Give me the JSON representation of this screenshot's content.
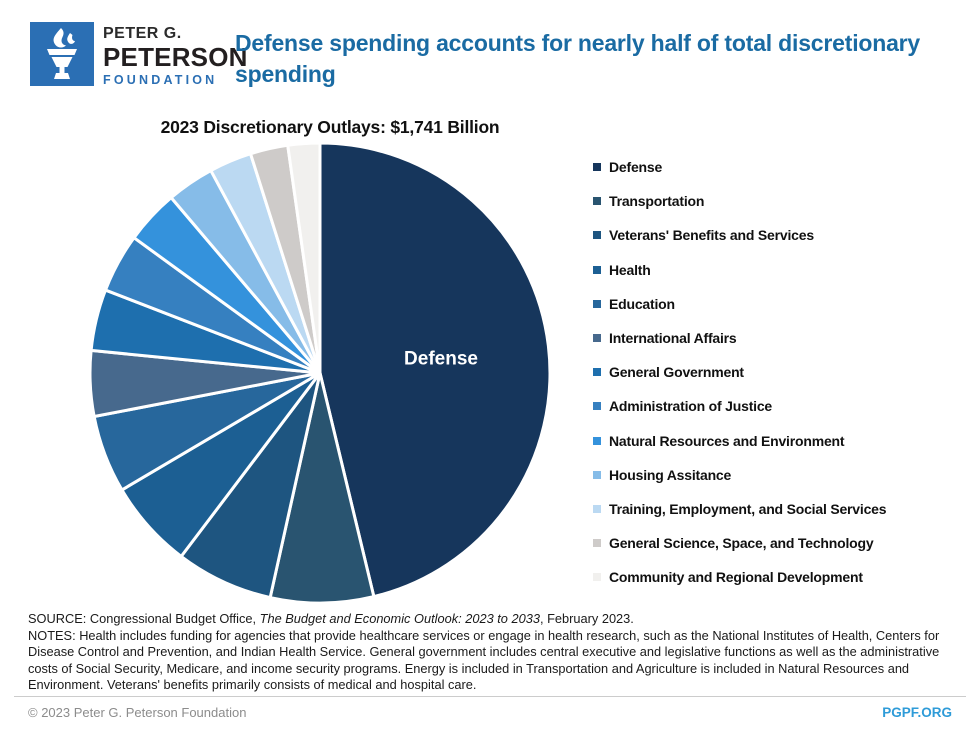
{
  "header": {
    "logo": {
      "line1": "PETER G.",
      "line2": "PETERSON",
      "line3": "FOUNDATION",
      "square_color": "#2b6fb4",
      "icon": "torch-icon"
    },
    "title": "Defense spending accounts for nearly half of total discretionary spending",
    "title_color": "#1a6ba3"
  },
  "chart": {
    "title": "2023 Discretionary Outlays: $1,741 Billion"
  },
  "chart_data": {
    "type": "pie",
    "title": "2023 Discretionary Outlays: $1,741 Billion",
    "units": "billions of dollars",
    "total": 1741,
    "start_angle_deg": 0,
    "direction": "clockwise",
    "legend_position": "right",
    "categories": [
      "Defense",
      "Transportation",
      "Veterans' Benefits and Services",
      "Health",
      "Education",
      "International Affairs",
      "General Government",
      "Administration of Justice",
      "Natural Resources and Environment",
      "Housing Assitance",
      "Training, Employment, and Social Services",
      "General Science, Space, and Technology",
      "Community and Regional Development"
    ],
    "values": [
      805,
      126,
      119,
      108,
      95,
      80,
      75,
      72,
      66,
      58,
      52,
      46,
      39
    ],
    "colors": [
      "#16365c",
      "#295470",
      "#1e5580",
      "#1c5f93",
      "#27679c",
      "#47698d",
      "#1e6fae",
      "#3680c0",
      "#3492dc",
      "#86bce8",
      "#bbd9f2",
      "#cecbc9",
      "#f1f0ee"
    ],
    "slice_separator_color": "#ffffff",
    "inner_label": {
      "text": "Defense",
      "color": "#ffffff",
      "slice_index": 0
    }
  },
  "footer": {
    "source_prefix": "SOURCE: Congressional Budget Office, ",
    "source_italic": "The Budget and Economic Outlook: 2023 to 2033",
    "source_suffix": ", February 2023.",
    "notes": "NOTES: Health includes funding for agencies that provide healthcare services or engage in health research, such as the National Institutes of Health, Centers for Disease Control and Prevention, and Indian Health Service. General government includes central executive and legislative functions as well as the administrative costs of Social Security, Medicare, and income security programs. Energy is included in Transportation and Agriculture is included in Natural Resources and Environment. Veterans' benefits primarily consists of medical and hospital care.",
    "copyright": "© 2023 Peter G. Peterson Foundation",
    "site": "PGPF.ORG",
    "site_color": "#2e9bd8"
  }
}
